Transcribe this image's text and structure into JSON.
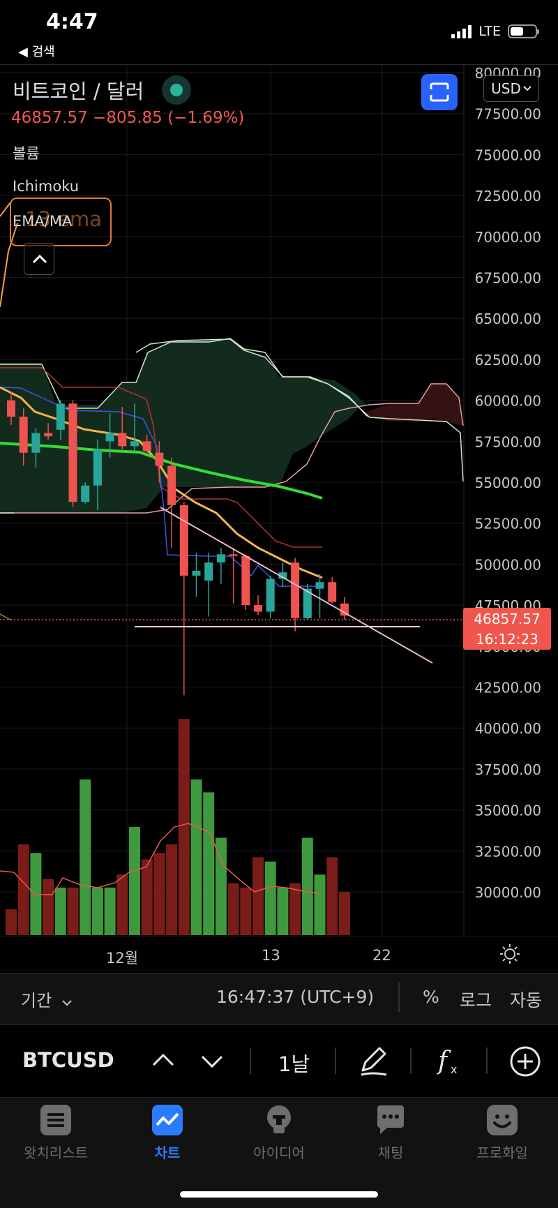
{
  "status_bar": {
    "time": "4:47",
    "back_label": "◀ 검색",
    "network": "LTE"
  },
  "header": {
    "symbol_title": "비트코인 / 달러",
    "price_line": "46857.57  −805.85 (−1.69%)",
    "currency": "USD"
  },
  "indicators": {
    "volume": "볼륨",
    "ichimoku": "Ichimoku",
    "ema": "EMA/MA",
    "ema_tooltip": "13 ema"
  },
  "price_axis": [
    "80000.00",
    "77500.00",
    "75000.00",
    "72500.00",
    "70000.00",
    "67500.00",
    "65000.00",
    "62500.00",
    "60000.00",
    "57500.00",
    "55000.00",
    "52500.00",
    "50000.00",
    "47500.00",
    "45000.00",
    "42500.00",
    "40000.00",
    "37500.00",
    "35000.00",
    "32500.00",
    "30000.00"
  ],
  "time_axis": [
    "12월",
    "13",
    "22"
  ],
  "price_tag": {
    "price": "46857.57",
    "countdown": "16:12:23"
  },
  "toolbar": {
    "period": "기간",
    "clock": "16:47:37 (UTC+9)",
    "percent": "%",
    "log": "로그",
    "auto": "자동",
    "ticker": "BTCUSD",
    "interval": "1날"
  },
  "tabs": [
    {
      "label": "왓치리스트",
      "icon": "list-icon",
      "active": false
    },
    {
      "label": "차트",
      "icon": "chart-icon",
      "active": true
    },
    {
      "label": "아이디어",
      "icon": "lightbulb-icon",
      "active": false
    },
    {
      "label": "채팅",
      "icon": "chat-icon",
      "active": false
    },
    {
      "label": "프로화일",
      "icon": "profile-icon",
      "active": false
    }
  ],
  "colors": {
    "up": "#2f9e5a",
    "down": "#ef5350",
    "accent": "#2962ff",
    "tab_active": "#2a7cff"
  },
  "chart_data": {
    "type": "candlestick",
    "price_range": [
      28000,
      80000
    ],
    "candles": [
      {
        "o": 60000,
        "h": 60500,
        "l": 58500,
        "c": 59000
      },
      {
        "o": 59000,
        "h": 59500,
        "l": 56000,
        "c": 56800
      },
      {
        "o": 56800,
        "h": 58300,
        "l": 55900,
        "c": 58000
      },
      {
        "o": 58000,
        "h": 58600,
        "l": 57600,
        "c": 57800
      },
      {
        "o": 58200,
        "h": 60000,
        "l": 57600,
        "c": 59800
      },
      {
        "o": 59800,
        "h": 60000,
        "l": 53500,
        "c": 53800
      },
      {
        "o": 53800,
        "h": 55000,
        "l": 53700,
        "c": 54800
      },
      {
        "o": 54800,
        "h": 57600,
        "l": 53300,
        "c": 57000
      },
      {
        "o": 57500,
        "h": 59200,
        "l": 56500,
        "c": 58000
      },
      {
        "o": 58000,
        "h": 59600,
        "l": 57000,
        "c": 57200
      },
      {
        "o": 57200,
        "h": 59800,
        "l": 56800,
        "c": 57500
      },
      {
        "o": 57500,
        "h": 57900,
        "l": 56800,
        "c": 56900
      },
      {
        "o": 56800,
        "h": 57500,
        "l": 55000,
        "c": 56000
      },
      {
        "o": 56000,
        "h": 56500,
        "l": 51000,
        "c": 53600
      },
      {
        "o": 53600,
        "h": 53800,
        "l": 42000,
        "c": 49300
      },
      {
        "o": 49300,
        "h": 50700,
        "l": 48000,
        "c": 49600
      },
      {
        "o": 49000,
        "h": 50700,
        "l": 46800,
        "c": 50100
      },
      {
        "o": 50100,
        "h": 51000,
        "l": 48800,
        "c": 50600
      },
      {
        "o": 50600,
        "h": 51000,
        "l": 47600,
        "c": 50500
      },
      {
        "o": 50500,
        "h": 50600,
        "l": 47200,
        "c": 47500
      },
      {
        "o": 47500,
        "h": 48100,
        "l": 46900,
        "c": 47100
      },
      {
        "o": 47100,
        "h": 49300,
        "l": 46700,
        "c": 49100
      },
      {
        "o": 49100,
        "h": 50100,
        "l": 48600,
        "c": 49500
      },
      {
        "o": 50100,
        "h": 50400,
        "l": 45900,
        "c": 46700
      },
      {
        "o": 46700,
        "h": 48800,
        "l": 46600,
        "c": 48500
      },
      {
        "o": 48500,
        "h": 49400,
        "l": 46700,
        "c": 48900
      },
      {
        "o": 48900,
        "h": 49200,
        "l": 47600,
        "c": 47700
      },
      {
        "o": 47600,
        "h": 48000,
        "l": 46600,
        "c": 46857.57
      }
    ],
    "volumes": [
      0.12,
      0.42,
      0.38,
      0.26,
      0.22,
      0.22,
      0.72,
      0.22,
      0.22,
      0.28,
      0.5,
      0.35,
      0.38,
      0.42,
      1.0,
      0.72,
      0.66,
      0.45,
      0.24,
      0.22,
      0.36,
      0.34,
      0.22,
      0.24,
      0.45,
      0.28,
      0.36,
      0.2
    ],
    "last_price": 46857.57
  }
}
